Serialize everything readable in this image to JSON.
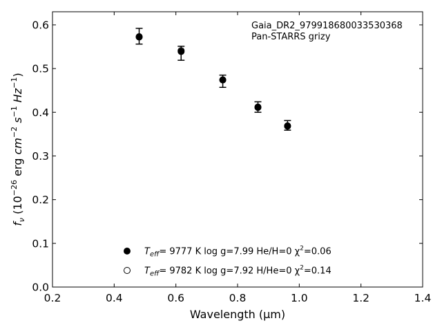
{
  "chart_data": {
    "type": "scatter",
    "xlabel": "Wavelength (μm)",
    "ylabel": "f_ν (10^-26 erg cm^-2 s^-1 Hz^-1)",
    "xlim": [
      0.2,
      1.4
    ],
    "ylim": [
      0.0,
      0.63
    ],
    "xticks": [
      0.2,
      0.4,
      0.6,
      0.8,
      1.0,
      1.2,
      1.4
    ],
    "yticks": [
      0.0,
      0.1,
      0.2,
      0.3,
      0.4,
      0.5,
      0.6
    ],
    "grid": false,
    "annotation": {
      "line1": "Gaia_DR2_979918680033530368",
      "line2": "Pan-STARRS grizy"
    },
    "observed": {
      "x": [
        0.481,
        0.617,
        0.752,
        0.866,
        0.962
      ],
      "y": [
        0.574,
        0.535,
        0.471,
        0.412,
        0.37
      ],
      "yerr": [
        0.018,
        0.016,
        0.014,
        0.012,
        0.011
      ]
    },
    "series": [
      {
        "marker": "filled",
        "label_teff_prefix": "T",
        "label_teff_sub": "eff",
        "label_rest": "=  9777 K  log g=7.99  He/H=0  χ",
        "label_chi_sup": "2",
        "label_chi_val": "=0.06",
        "x": [
          0.481,
          0.617,
          0.752,
          0.866,
          0.962
        ],
        "y": [
          0.572,
          0.539,
          0.474,
          0.412,
          0.369
        ]
      },
      {
        "marker": "open",
        "label_teff_prefix": "T",
        "label_teff_sub": "eff",
        "label_rest": "=  9782 K  log g=7.92  H/He=0  χ",
        "label_chi_sup": "2",
        "label_chi_val": "=0.14",
        "x": [
          0.481,
          0.617,
          0.752,
          0.866,
          0.962
        ],
        "y": [
          0.573,
          0.541,
          0.474,
          0.411,
          0.368
        ]
      }
    ],
    "legend_position": "lower-center",
    "colors": {
      "marker": "#000000",
      "axes": "#000000"
    }
  }
}
